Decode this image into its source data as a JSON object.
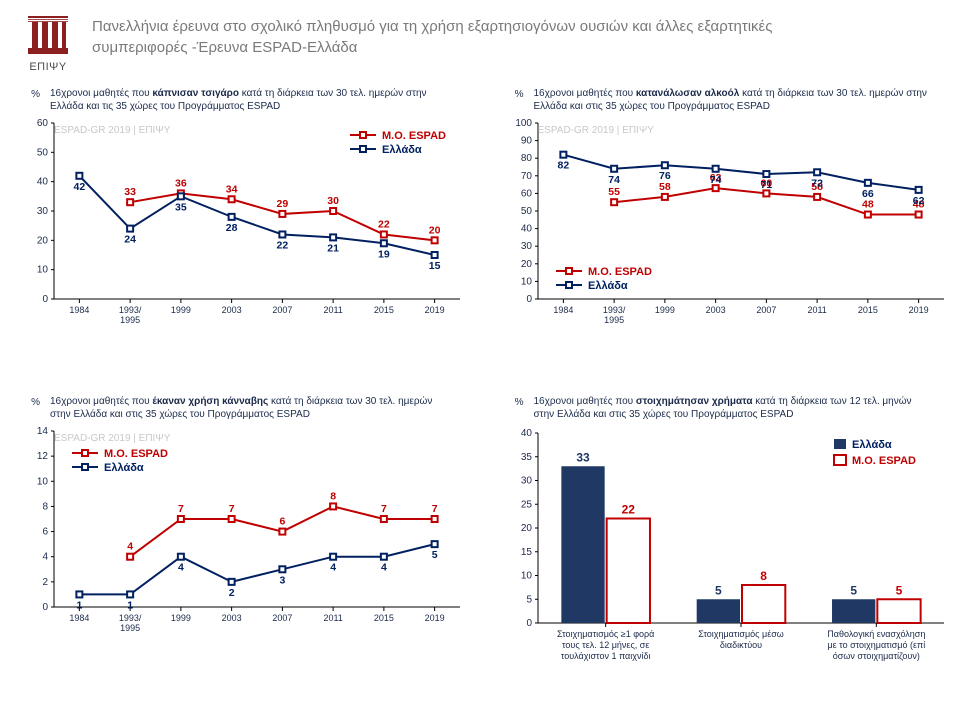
{
  "logo_label": "ΕΠΙΨΥ",
  "page_title_line1": "Πανελλήνια έρευνα στο σχολικό πληθυσμό για τη χρήση εξαρτησιογόνων ουσιών και άλλες εξαρτητικές",
  "page_title_line2": "συμπεριφορές -Έρευνα ESPAD-Ελλάδα",
  "watermark": "ESPAD-GR 2019 | ΕΠΙΨΥ",
  "colors": {
    "espad": "#c00000",
    "greece": "#002060",
    "bar_filled": "#1f3864",
    "text": "#1b2a4a",
    "page_title": "#7a7a7a",
    "watermark": "#c8c8c8",
    "axis": "#000000",
    "background": "#ffffff"
  },
  "legend_labels": {
    "espad": "Μ.Ο. ESPAD",
    "greece": "Ελλάδα"
  },
  "charts": {
    "topleft": {
      "type": "line",
      "title_pre": "16χρονοι μαθητές που ",
      "title_bold": "κάπνισαν τσιγάρο",
      "title_post": " κατά τη διάρκεια των 30 τελ. ημερών στην Ελλάδα και τις 35 χώρες του Προγράμματος ESPAD",
      "ylabel": "%",
      "ylim": [
        0,
        60
      ],
      "ytick_step": 10,
      "xcats": [
        "1984",
        "1993/\n1995",
        "1999",
        "2003",
        "2007",
        "2011",
        "2015",
        "2019"
      ],
      "series": {
        "espad": {
          "values": [
            null,
            33,
            36,
            34,
            29,
            30,
            22,
            20
          ]
        },
        "greece": {
          "values": [
            42,
            24,
            35,
            28,
            22,
            21,
            19,
            15
          ]
        }
      },
      "legend_pos": "top-right"
    },
    "topright": {
      "type": "line",
      "title_pre": "16χρονοι μαθητές που ",
      "title_bold": "κατανάλωσαν αλκοόλ",
      "title_post": " κατά τη διάρκεια των 30 τελ. ημερών στην Ελλάδα και στις 35 χώρες του Προγράμματος ESPAD",
      "ylabel": "%",
      "ylim": [
        0,
        100
      ],
      "ytick_step": 10,
      "xcats": [
        "1984",
        "1993/\n1995",
        "1999",
        "2003",
        "2007",
        "2011",
        "2015",
        "2019"
      ],
      "series": {
        "espad": {
          "values": [
            null,
            55,
            58,
            63,
            60,
            58,
            48,
            48
          ]
        },
        "greece": {
          "values": [
            82,
            74,
            76,
            74,
            71,
            72,
            66,
            62
          ]
        }
      },
      "legend_pos": "bottom-left"
    },
    "bottomleft": {
      "type": "line",
      "title_pre": "16χρονοι μαθητές που ",
      "title_bold": "έκαναν χρήση κάνναβης",
      "title_post": " κατά τη διάρκεια των 30 τελ. ημερών στην Ελλάδα και στις 35 χώρες του Προγράμματος ESPAD",
      "ylabel": "%",
      "ylim": [
        0,
        14
      ],
      "ytick_step": 2,
      "xcats": [
        "1984",
        "1993/\n1995",
        "1999",
        "2003",
        "2007",
        "2011",
        "2015",
        "2019"
      ],
      "series": {
        "espad": {
          "values": [
            null,
            4,
            7,
            7,
            6,
            8,
            7,
            7
          ]
        },
        "greece": {
          "values": [
            1,
            1,
            4,
            2,
            3,
            4,
            4,
            5
          ]
        }
      },
      "legend_pos": "top-left"
    },
    "bottomright": {
      "type": "bar",
      "title_pre": "16χρονοι μαθητές που ",
      "title_bold": "στοιχημάτησαν χρήματα",
      "title_post": " κατά τη διάρκεια των 12 τελ. μηνών στην Ελλάδα και στις 35 χώρες του Προγράμματος ESPAD",
      "ylabel": "%",
      "ylim": [
        0,
        40
      ],
      "ytick_step": 5,
      "categories": [
        "Στοιχηματισμός ≥1 φορά\nτους τελ. 12 μήνες, σε\nτουλάχιστον 1 παιχνίδι",
        "Στοιχηματισμός μέσω\nδιαδικτύου",
        "Παθολογική ενασχόληση\nμε το στοιχηματισμό (επί\nόσων στοιχηματίζουν)"
      ],
      "series": {
        "greece": {
          "values": [
            33,
            5,
            5
          ]
        },
        "espad": {
          "values": [
            22,
            8,
            5
          ]
        }
      },
      "legend_pos": "top-right"
    }
  }
}
